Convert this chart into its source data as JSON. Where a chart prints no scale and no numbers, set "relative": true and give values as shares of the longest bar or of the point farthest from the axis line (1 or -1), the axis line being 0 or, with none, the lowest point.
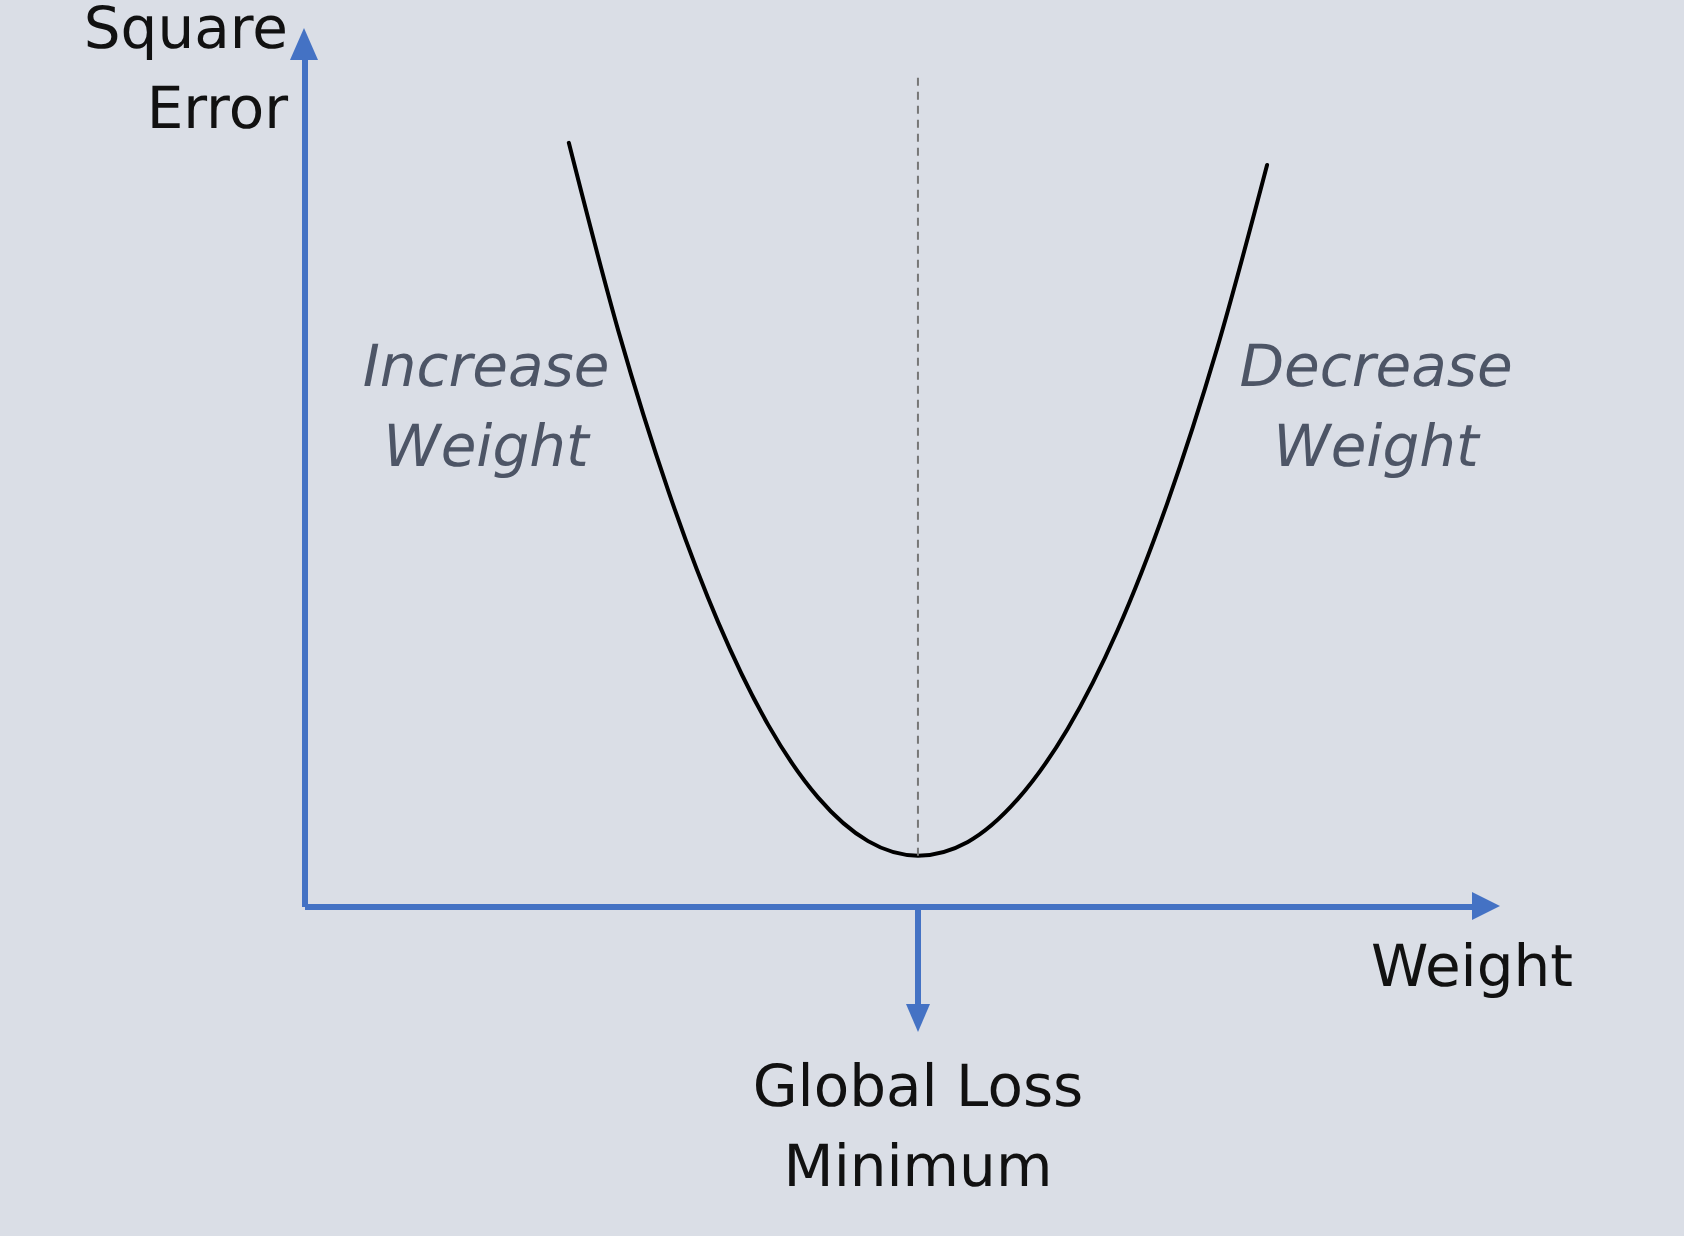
{
  "chart_data": {
    "type": "line",
    "relative": true,
    "ylabel": "Square Error",
    "xlabel": "Weight",
    "categories": [
      null,
      null,
      null,
      null,
      null,
      null,
      null,
      null,
      null,
      null,
      null,
      null,
      null,
      null,
      null
    ],
    "series": [
      {
        "color": "#000000",
        "values": [
          1,
          0.752,
          0.543,
          0.371,
          0.237,
          0.142,
          0.085,
          0.066,
          0.084,
          0.14,
          0.232,
          0.361,
          0.528,
          0.731,
          0.971
        ]
      }
    ],
    "ref_lines": [
      {
        "axis": "x",
        "line_style": "dashed",
        "color": "#777777"
      }
    ],
    "annotations": [
      "Increase Weight",
      "Decrease Weight",
      "Global Loss Minimum"
    ]
  }
}
